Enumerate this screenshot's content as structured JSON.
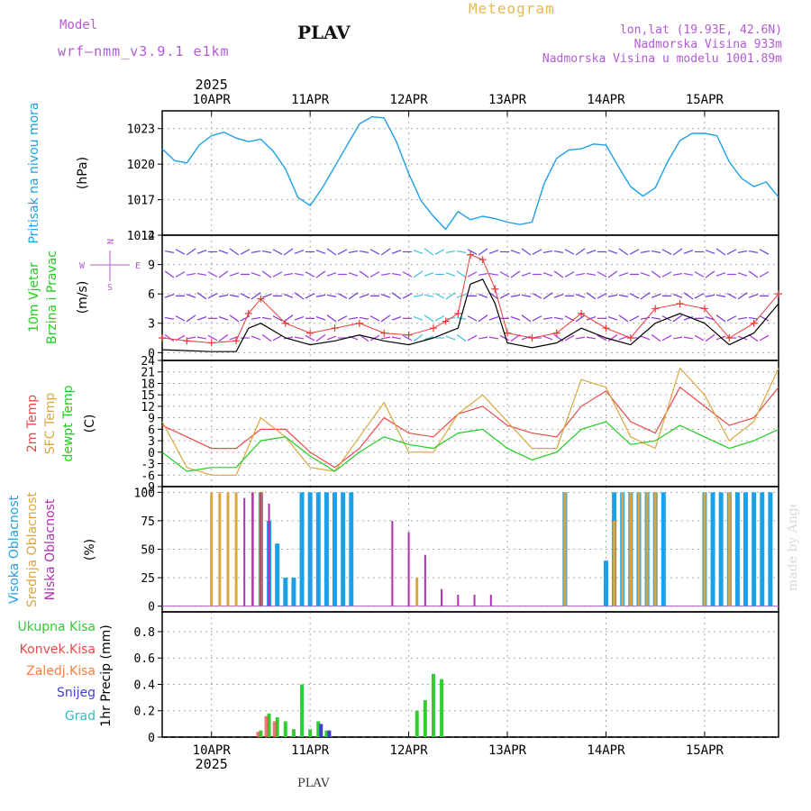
{
  "header": {
    "model_label": "Model",
    "model_name": "wrf—nmm_v3.9.1 e1km",
    "station": "PLAV",
    "title": "Meteogram",
    "location": "lon,lat (19.93E, 42.6N)",
    "elevation": "Nadmorska Visina 933m",
    "model_elevation": "Nadmorska Visina u modelu 1001.89m",
    "footer_station": "PLAV",
    "made_by": "made by Angel"
  },
  "colors": {
    "pressure": "#1ea0e6",
    "wind_speed": "#000000",
    "wind_gust": "#e83a3a",
    "temp_2m": "#e84a4a",
    "temp_sfc": "#d9a640",
    "dewpoint": "#22cc22",
    "cloud_high": "#1ea0e6",
    "cloud_mid": "#d9a640",
    "cloud_low": "#b030b0",
    "precip_total": "#33cc33",
    "precip_conv": "#e84a4a",
    "precip_frozen": "#f08040",
    "precip_snow": "#4040d0",
    "precip_graupel": "#30c0c0",
    "purple_label": "#b35ad6"
  },
  "x_axis": {
    "top_year": "2025",
    "bottom_year": "2025",
    "day_labels": [
      "10APR",
      "11APR",
      "12APR",
      "13APR",
      "14APR",
      "15APR"
    ],
    "start": "2025-04-09 12:00",
    "end": "2025-04-15 18:00"
  },
  "chart_data": [
    {
      "type": "line",
      "panel": "pressure",
      "ylabel": "Pritisak na nivou mora",
      "unit": "(hPa)",
      "y_ticks": [
        "1023",
        "1020",
        "1017",
        "1014"
      ],
      "ylim": [
        1014,
        1024.5
      ],
      "grid": true,
      "series": [
        {
          "x": [
            "2025-04-09 12:00",
            "2025-04-09 15:00",
            "2025-04-09 18:00",
            "2025-04-09 21:00",
            "2025-04-10 00:00",
            "2025-04-10 03:00",
            "2025-04-10 06:00",
            "2025-04-10 09:00",
            "2025-04-10 12:00",
            "2025-04-10 15:00",
            "2025-04-10 18:00",
            "2025-04-10 21:00",
            "2025-04-11 00:00",
            "2025-04-11 03:00",
            "2025-04-11 06:00",
            "2025-04-11 09:00",
            "2025-04-11 12:00",
            "2025-04-11 15:00",
            "2025-04-11 18:00",
            "2025-04-11 21:00",
            "2025-04-12 00:00",
            "2025-04-12 03:00",
            "2025-04-12 06:00",
            "2025-04-12 09:00",
            "2025-04-12 12:00",
            "2025-04-12 15:00",
            "2025-04-12 18:00",
            "2025-04-12 21:00",
            "2025-04-13 00:00",
            "2025-04-13 03:00",
            "2025-04-13 06:00",
            "2025-04-13 09:00",
            "2025-04-13 12:00",
            "2025-04-13 15:00",
            "2025-04-13 18:00",
            "2025-04-13 21:00",
            "2025-04-14 00:00",
            "2025-04-14 03:00",
            "2025-04-14 06:00",
            "2025-04-14 09:00",
            "2025-04-14 12:00",
            "2025-04-14 15:00",
            "2025-04-14 18:00",
            "2025-04-14 21:00",
            "2025-04-15 00:00",
            "2025-04-15 03:00",
            "2025-04-15 06:00",
            "2025-04-15 09:00",
            "2025-04-15 12:00",
            "2025-04-15 15:00",
            "2025-04-15 18:00"
          ],
          "values": [
            1021.3,
            1020.3,
            1020.1,
            1021.6,
            1022.4,
            1022.7,
            1022.2,
            1021.9,
            1022.1,
            1021.1,
            1019.6,
            1017.2,
            1016.5,
            1018.0,
            1019.8,
            1021.6,
            1023.4,
            1024.0,
            1023.9,
            1021.9,
            1019.2,
            1016.9,
            1015.6,
            1014.5,
            1016.0,
            1015.3,
            1015.6,
            1015.4,
            1015.1,
            1014.9,
            1015.1,
            1018.4,
            1020.5,
            1021.2,
            1021.3,
            1021.7,
            1021.6,
            1019.8,
            1018.1,
            1017.3,
            1018.0,
            1020.2,
            1022.0,
            1022.6,
            1022.6,
            1022.4,
            1020.2,
            1018.8,
            1018.1,
            1018.5,
            1017.2
          ]
        }
      ]
    },
    {
      "type": "line",
      "panel": "wind",
      "ylabel_line1": "10m Vjetar",
      "ylabel_line2": "Brzina i Pravac",
      "unit": "(m/s)",
      "legend_dir": "N",
      "legend_w": "W",
      "legend_e": "E",
      "legend_s": "S",
      "y_ticks": [
        "0",
        "3",
        "6",
        "9",
        "12"
      ],
      "ylim": [
        -0.8,
        12
      ],
      "grid": true,
      "series": [
        {
          "name": "speed",
          "x": [
            "2025-04-09 12:00",
            "2025-04-09 18:00",
            "2025-04-10 00:00",
            "2025-04-10 06:00",
            "2025-04-10 09:00",
            "2025-04-10 12:00",
            "2025-04-10 18:00",
            "2025-04-11 00:00",
            "2025-04-11 06:00",
            "2025-04-11 12:00",
            "2025-04-11 18:00",
            "2025-04-12 00:00",
            "2025-04-12 06:00",
            "2025-04-12 09:00",
            "2025-04-12 12:00",
            "2025-04-12 15:00",
            "2025-04-12 18:00",
            "2025-04-12 21:00",
            "2025-04-13 00:00",
            "2025-04-13 06:00",
            "2025-04-13 12:00",
            "2025-04-13 18:00",
            "2025-04-14 00:00",
            "2025-04-14 06:00",
            "2025-04-14 12:00",
            "2025-04-14 18:00",
            "2025-04-15 00:00",
            "2025-04-15 06:00",
            "2025-04-15 12:00",
            "2025-04-15 18:00"
          ],
          "values": [
            0.3,
            0.2,
            0.1,
            0.1,
            2.5,
            3.0,
            1.5,
            0.8,
            1.2,
            1.8,
            1.2,
            0.8,
            1.5,
            2.0,
            2.5,
            7.0,
            7.5,
            5.0,
            1.0,
            0.5,
            1.0,
            2.5,
            1.5,
            0.8,
            3.0,
            4.0,
            3.0,
            0.8,
            2.0,
            5.0
          ]
        },
        {
          "name": "gust",
          "x": [
            "2025-04-09 12:00",
            "2025-04-09 18:00",
            "2025-04-10 00:00",
            "2025-04-10 06:00",
            "2025-04-10 09:00",
            "2025-04-10 12:00",
            "2025-04-10 18:00",
            "2025-04-11 00:00",
            "2025-04-11 06:00",
            "2025-04-11 12:00",
            "2025-04-11 18:00",
            "2025-04-12 00:00",
            "2025-04-12 06:00",
            "2025-04-12 09:00",
            "2025-04-12 12:00",
            "2025-04-12 15:00",
            "2025-04-12 18:00",
            "2025-04-12 21:00",
            "2025-04-13 00:00",
            "2025-04-13 06:00",
            "2025-04-13 12:00",
            "2025-04-13 18:00",
            "2025-04-14 00:00",
            "2025-04-14 06:00",
            "2025-04-14 12:00",
            "2025-04-14 18:00",
            "2025-04-15 00:00",
            "2025-04-15 06:00",
            "2025-04-15 12:00",
            "2025-04-15 18:00"
          ],
          "values": [
            1.5,
            1.2,
            1.0,
            1.2,
            4.0,
            5.5,
            3.0,
            2.0,
            2.5,
            3.0,
            2.0,
            1.8,
            2.5,
            3.2,
            4.0,
            10.0,
            9.5,
            6.5,
            2.0,
            1.5,
            2.0,
            4.0,
            2.5,
            1.5,
            4.5,
            5.0,
            4.5,
            1.5,
            3.0,
            6.0
          ]
        }
      ]
    },
    {
      "type": "line",
      "panel": "temperature",
      "ylabel_2m": "2m Temp",
      "ylabel_sfc": "SFC Temp",
      "ylabel_dew": "dewpt Temp",
      "unit": "(C)",
      "y_ticks": [
        "-9",
        "-6",
        "-3",
        "0",
        "3",
        "6",
        "9",
        "12",
        "15",
        "18",
        "21",
        "24"
      ],
      "ylim": [
        -9,
        24
      ],
      "grid": true,
      "series": [
        {
          "name": "2m",
          "x": [
            "2025-04-09 12:00",
            "2025-04-09 18:00",
            "2025-04-10 00:00",
            "2025-04-10 06:00",
            "2025-04-10 12:00",
            "2025-04-10 18:00",
            "2025-04-11 00:00",
            "2025-04-11 06:00",
            "2025-04-11 12:00",
            "2025-04-11 18:00",
            "2025-04-12 00:00",
            "2025-04-12 06:00",
            "2025-04-12 12:00",
            "2025-04-12 18:00",
            "2025-04-13 00:00",
            "2025-04-13 06:00",
            "2025-04-13 12:00",
            "2025-04-13 18:00",
            "2025-04-14 00:00",
            "2025-04-14 06:00",
            "2025-04-14 12:00",
            "2025-04-14 18:00",
            "2025-04-15 00:00",
            "2025-04-15 06:00",
            "2025-04-15 12:00",
            "2025-04-15 18:00"
          ],
          "values": [
            7,
            4,
            1,
            1,
            6,
            6,
            0,
            -4,
            1,
            9,
            5,
            4,
            10,
            12,
            7,
            5,
            4,
            12,
            16,
            8,
            5,
            17,
            12,
            7,
            9,
            17
          ]
        },
        {
          "name": "sfc",
          "x": [
            "2025-04-09 12:00",
            "2025-04-09 18:00",
            "2025-04-10 00:00",
            "2025-04-10 06:00",
            "2025-04-10 12:00",
            "2025-04-10 18:00",
            "2025-04-11 00:00",
            "2025-04-11 06:00",
            "2025-04-11 12:00",
            "2025-04-11 18:00",
            "2025-04-12 00:00",
            "2025-04-12 06:00",
            "2025-04-12 12:00",
            "2025-04-12 18:00",
            "2025-04-13 00:00",
            "2025-04-13 06:00",
            "2025-04-13 12:00",
            "2025-04-13 18:00",
            "2025-04-14 00:00",
            "2025-04-14 06:00",
            "2025-04-14 12:00",
            "2025-04-14 18:00",
            "2025-04-15 00:00",
            "2025-04-15 06:00",
            "2025-04-15 12:00",
            "2025-04-15 18:00"
          ],
          "values": [
            8,
            -4,
            -6,
            -6,
            9,
            4,
            -4,
            -5,
            4,
            13,
            0,
            0,
            10,
            15,
            8,
            1,
            1,
            19,
            17,
            4,
            1,
            22,
            15,
            3,
            8,
            22
          ]
        },
        {
          "name": "dewpoint",
          "x": [
            "2025-04-09 12:00",
            "2025-04-09 18:00",
            "2025-04-10 00:00",
            "2025-04-10 06:00",
            "2025-04-10 12:00",
            "2025-04-10 18:00",
            "2025-04-11 00:00",
            "2025-04-11 06:00",
            "2025-04-11 12:00",
            "2025-04-11 18:00",
            "2025-04-12 00:00",
            "2025-04-12 06:00",
            "2025-04-12 12:00",
            "2025-04-12 18:00",
            "2025-04-13 00:00",
            "2025-04-13 06:00",
            "2025-04-13 12:00",
            "2025-04-13 18:00",
            "2025-04-14 00:00",
            "2025-04-14 06:00",
            "2025-04-14 12:00",
            "2025-04-14 18:00",
            "2025-04-15 00:00",
            "2025-04-15 06:00",
            "2025-04-15 12:00",
            "2025-04-15 18:00"
          ],
          "values": [
            0,
            -5,
            -4,
            -4,
            3,
            4,
            -1,
            -5,
            0,
            4,
            2,
            1,
            5,
            6,
            1,
            -2,
            0,
            6,
            8,
            2,
            3,
            7,
            4,
            1,
            3,
            6
          ]
        }
      ]
    },
    {
      "type": "bar",
      "panel": "clouds",
      "ylabel_high": "Visoka Oblacnost",
      "ylabel_mid": "Srednja Oblacnost",
      "ylabel_low": "Niska Oblacnost",
      "unit": "(%)",
      "y_ticks": [
        "0",
        "25",
        "50",
        "75",
        "100"
      ],
      "ylim": [
        -5,
        105
      ],
      "grid": true,
      "series": [
        {
          "name": "high",
          "x": [
            "2025-04-10 12:00",
            "2025-04-10 14:00",
            "2025-04-10 16:00",
            "2025-04-10 18:00",
            "2025-04-10 20:00",
            "2025-04-10 22:00",
            "2025-04-11 00:00",
            "2025-04-11 02:00",
            "2025-04-11 04:00",
            "2025-04-11 06:00",
            "2025-04-11 08:00",
            "2025-04-11 10:00",
            "2025-04-13 14:00",
            "2025-04-14 00:00",
            "2025-04-14 02:00",
            "2025-04-14 04:00",
            "2025-04-14 06:00",
            "2025-04-14 08:00",
            "2025-04-14 10:00",
            "2025-04-14 12:00",
            "2025-04-14 14:00",
            "2025-04-15 00:00",
            "2025-04-15 02:00",
            "2025-04-15 04:00",
            "2025-04-15 06:00",
            "2025-04-15 08:00",
            "2025-04-15 10:00",
            "2025-04-15 12:00",
            "2025-04-15 14:00",
            "2025-04-15 16:00"
          ],
          "values": [
            100,
            75,
            55,
            25,
            25,
            100,
            100,
            100,
            100,
            100,
            100,
            100,
            100,
            40,
            100,
            100,
            100,
            100,
            100,
            100,
            100,
            100,
            100,
            100,
            100,
            100,
            100,
            100,
            100,
            100
          ]
        },
        {
          "name": "mid",
          "x": [
            "2025-04-10 00:00",
            "2025-04-10 02:00",
            "2025-04-10 04:00",
            "2025-04-10 06:00",
            "2025-04-10 10:00",
            "2025-04-10 12:00",
            "2025-04-12 02:00",
            "2025-04-13 14:00",
            "2025-04-14 02:00",
            "2025-04-14 04:00",
            "2025-04-14 06:00",
            "2025-04-14 08:00",
            "2025-04-14 10:00",
            "2025-04-14 12:00",
            "2025-04-15 00:00",
            "2025-04-15 06:00"
          ],
          "values": [
            100,
            100,
            100,
            100,
            100,
            100,
            25,
            100,
            75,
            100,
            100,
            100,
            100,
            100,
            100,
            100
          ]
        },
        {
          "name": "low",
          "x": [
            "2025-04-10 08:00",
            "2025-04-10 10:00",
            "2025-04-10 12:00",
            "2025-04-10 14:00",
            "2025-04-11 20:00",
            "2025-04-12 00:00",
            "2025-04-12 04:00",
            "2025-04-12 08:00",
            "2025-04-12 12:00",
            "2025-04-12 16:00",
            "2025-04-12 20:00"
          ],
          "values": [
            95,
            100,
            100,
            90,
            75,
            65,
            45,
            15,
            10,
            10,
            10
          ]
        }
      ]
    },
    {
      "type": "bar",
      "panel": "precipitation",
      "ylabel": "1hr Precip",
      "unit": "(mm)",
      "legend": [
        "Ukupna Kisa",
        "Konvek.Kisa",
        "Zaledj.Kisa",
        "Snijeg",
        "Grad"
      ],
      "y_ticks": [
        "0",
        "0.2",
        "0.4",
        "0.6",
        "0.8"
      ],
      "ylim": [
        0,
        0.95
      ],
      "grid": true,
      "series": [
        {
          "name": "total",
          "x": [
            "2025-04-10 12:00",
            "2025-04-10 14:00",
            "2025-04-10 16:00",
            "2025-04-10 18:00",
            "2025-04-10 20:00",
            "2025-04-10 22:00",
            "2025-04-11 00:00",
            "2025-04-11 02:00",
            "2025-04-11 04:00",
            "2025-04-12 02:00",
            "2025-04-12 04:00",
            "2025-04-12 06:00",
            "2025-04-12 08:00"
          ],
          "values": [
            0.05,
            0.18,
            0.15,
            0.12,
            0.06,
            0.4,
            0.06,
            0.12,
            0.05,
            0.2,
            0.28,
            0.48,
            0.44
          ]
        },
        {
          "name": "conv",
          "x": [
            "2025-04-10 12:00",
            "2025-04-10 14:00",
            "2025-04-10 16:00"
          ],
          "values": [
            0.04,
            0.16,
            0.12
          ]
        },
        {
          "name": "snow",
          "x": [
            "2025-04-11 02:00",
            "2025-04-11 04:00"
          ],
          "values": [
            0.1,
            0.05
          ]
        }
      ]
    }
  ]
}
